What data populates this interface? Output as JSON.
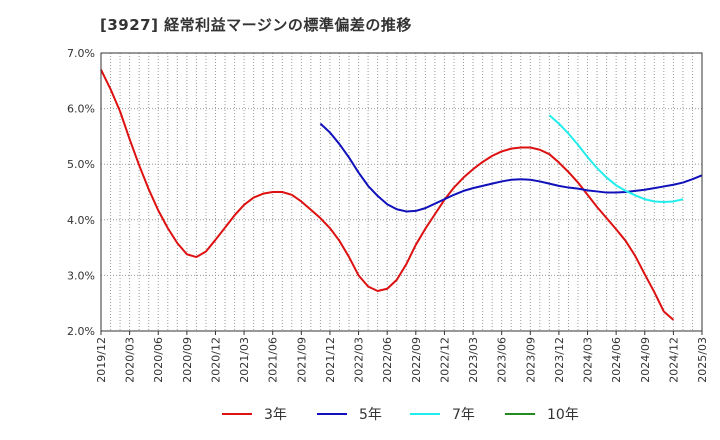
{
  "chart_data": {
    "type": "line",
    "title": "[3927]  経常利益マージンの標準偏差の推移",
    "xlabel": "",
    "ylabel": "",
    "ylim": [
      2.0,
      7.0
    ],
    "y_ticks": [
      2.0,
      3.0,
      4.0,
      5.0,
      6.0,
      7.0
    ],
    "y_tick_labels": [
      "2.0%",
      "3.0%",
      "4.0%",
      "5.0%",
      "6.0%",
      "7.0%"
    ],
    "x_tick_labels": [
      "2019/12",
      "2020/03",
      "2020/06",
      "2020/09",
      "2020/12",
      "2021/03",
      "2021/06",
      "2021/09",
      "2021/12",
      "2022/03",
      "2022/06",
      "2022/09",
      "2022/12",
      "2023/03",
      "2023/06",
      "2023/09",
      "2023/12",
      "2024/03",
      "2024/06",
      "2024/09",
      "2024/12",
      "2025/03"
    ],
    "grid": true,
    "legend_position": "bottom",
    "series": [
      {
        "name": "3年",
        "color": "#dd1111",
        "start": "2019/12",
        "values": [
          6.7,
          6.35,
          5.95,
          5.45,
          4.98,
          4.55,
          4.17,
          3.85,
          3.58,
          3.38,
          3.33,
          3.43,
          3.64,
          3.86,
          4.08,
          4.27,
          4.4,
          4.47,
          4.5,
          4.5,
          4.45,
          4.33,
          4.18,
          4.03,
          3.85,
          3.62,
          3.33,
          3.0,
          2.8,
          2.72,
          2.76,
          2.92,
          3.2,
          3.55,
          3.84,
          4.1,
          4.36,
          4.58,
          4.76,
          4.91,
          5.04,
          5.15,
          5.23,
          5.28,
          5.3,
          5.3,
          5.26,
          5.18,
          5.03,
          4.86,
          4.67,
          4.45,
          4.23,
          4.03,
          3.83,
          3.62,
          3.35,
          3.02,
          2.7,
          2.35,
          2.2
        ]
      },
      {
        "name": "5年",
        "color": "#1111bb",
        "start": "2021/11",
        "values": [
          5.73,
          5.57,
          5.36,
          5.12,
          4.85,
          4.61,
          4.43,
          4.28,
          4.19,
          4.15,
          4.16,
          4.21,
          4.29,
          4.37,
          4.45,
          4.52,
          4.57,
          4.61,
          4.65,
          4.69,
          4.72,
          4.73,
          4.72,
          4.69,
          4.65,
          4.61,
          4.58,
          4.56,
          4.53,
          4.51,
          4.49,
          4.49,
          4.5,
          4.52,
          4.54,
          4.57,
          4.6,
          4.63,
          4.67,
          4.73,
          4.8
        ]
      },
      {
        "name": "7年",
        "color": "#22eeee",
        "start": "2023/11",
        "values": [
          5.88,
          5.73,
          5.55,
          5.35,
          5.13,
          4.93,
          4.76,
          4.62,
          4.52,
          4.44,
          4.37,
          4.33,
          4.32,
          4.33,
          4.37
        ]
      },
      {
        "name": "10年",
        "color": "#228b22",
        "start": "",
        "values": []
      }
    ]
  }
}
